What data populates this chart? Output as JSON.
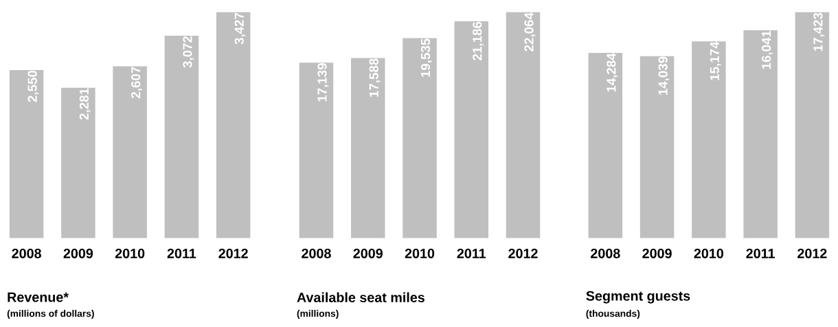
{
  "chart_data": [
    {
      "type": "bar",
      "title": "Revenue*",
      "subtitle": "(millions of dollars)",
      "categories": [
        "2008",
        "2009",
        "2010",
        "2011",
        "2012"
      ],
      "values": [
        2550,
        2281,
        2607,
        3072,
        3427
      ],
      "value_labels": [
        "2,550",
        "2,281",
        "2,607",
        "3,072",
        "3,427"
      ],
      "color": "#bfbfbf"
    },
    {
      "type": "bar",
      "title": "Available seat miles",
      "subtitle": "(millions)",
      "categories": [
        "2008",
        "2009",
        "2010",
        "2011",
        "2012"
      ],
      "values": [
        17139,
        17588,
        19535,
        21186,
        22064
      ],
      "value_labels": [
        "17,139",
        "17,588",
        "19,535",
        "21,186",
        "22,064"
      ],
      "color": "#bfbfbf"
    },
    {
      "type": "bar",
      "title": "Segment guests",
      "subtitle": "(thousands)",
      "categories": [
        "2008",
        "2009",
        "2010",
        "2011",
        "2012"
      ],
      "values": [
        14284,
        14039,
        15174,
        16041,
        17423
      ],
      "value_labels": [
        "14,284",
        "14,039",
        "15,174",
        "16,041",
        "17,423"
      ],
      "color": "#bfbfbf"
    }
  ]
}
